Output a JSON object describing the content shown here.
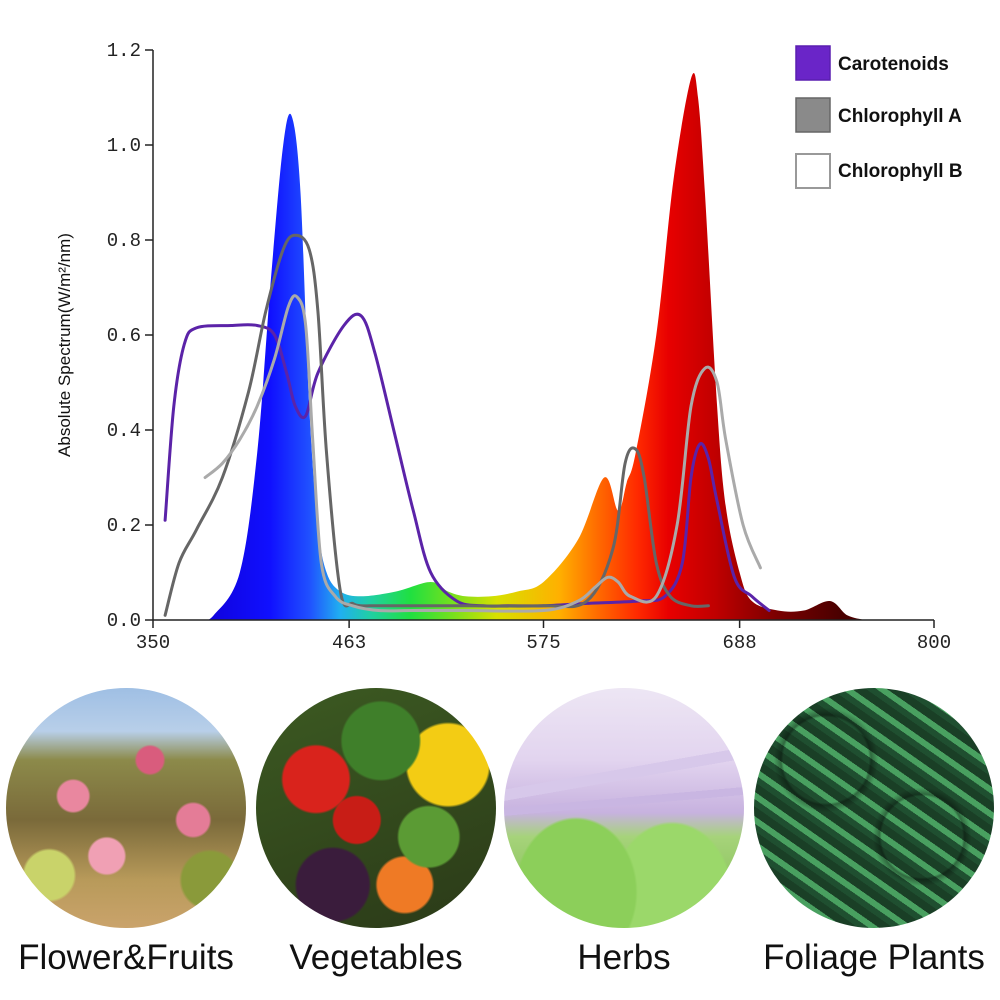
{
  "chart_data": {
    "type": "area",
    "ylabel": "Absolute Spectrum(W/m²/nm)",
    "xlabel": "",
    "xlim": [
      350,
      800
    ],
    "ylim": [
      0,
      1.2
    ],
    "x_ticks": [
      "350",
      "463",
      "575",
      "688",
      "800"
    ],
    "y_ticks": [
      "0.0",
      "0.2",
      "0.4",
      "0.6",
      "0.8",
      "1.0",
      "1.2"
    ],
    "grid": false,
    "legend_position": "top-right",
    "legend": [
      {
        "name": "Carotenoids",
        "color": "#6a25c8"
      },
      {
        "name": "Chlorophyll A",
        "color": "#888888"
      },
      {
        "name": "Chlorophyll B",
        "color": "#ffffff"
      }
    ],
    "led_spectrum": {
      "x": [
        378,
        385,
        400,
        410,
        418,
        425,
        430,
        435,
        440,
        445,
        450,
        458,
        470,
        490,
        510,
        520,
        530,
        545,
        560,
        575,
        595,
        610,
        618,
        623,
        628,
        640,
        650,
        660,
        664,
        668,
        675,
        680,
        688,
        695,
        710,
        725,
        740,
        750,
        760
      ],
      "y": [
        0.0,
        0.01,
        0.1,
        0.35,
        0.72,
        1.0,
        1.06,
        0.9,
        0.45,
        0.2,
        0.1,
        0.06,
        0.05,
        0.06,
        0.08,
        0.06,
        0.05,
        0.05,
        0.06,
        0.08,
        0.17,
        0.3,
        0.23,
        0.29,
        0.35,
        0.6,
        0.93,
        1.14,
        1.1,
        0.9,
        0.45,
        0.24,
        0.1,
        0.04,
        0.02,
        0.02,
        0.04,
        0.01,
        0.0
      ]
    },
    "series": [
      {
        "name": "Carotenoids",
        "color": "#5b23a8",
        "x": [
          357,
          362,
          368,
          375,
          395,
          410,
          420,
          427,
          432,
          438,
          445,
          460,
          470,
          478,
          490,
          500,
          510,
          525,
          540,
          555,
          575,
          600,
          630,
          645,
          655,
          660,
          665,
          670,
          675,
          685,
          695,
          705
        ],
        "y": [
          0.21,
          0.45,
          0.58,
          0.615,
          0.62,
          0.62,
          0.6,
          0.52,
          0.45,
          0.43,
          0.52,
          0.62,
          0.64,
          0.56,
          0.38,
          0.23,
          0.1,
          0.04,
          0.03,
          0.03,
          0.03,
          0.035,
          0.04,
          0.05,
          0.12,
          0.3,
          0.37,
          0.34,
          0.25,
          0.09,
          0.05,
          0.02
        ]
      },
      {
        "name": "Chlorophyll A",
        "color": "#666666",
        "x": [
          357,
          365,
          375,
          390,
          405,
          415,
          425,
          432,
          440,
          445,
          450,
          458,
          465,
          470,
          475,
          480,
          485,
          500,
          530,
          575,
          600,
          615,
          622,
          628,
          633,
          640,
          648,
          660,
          670
        ],
        "y": [
          0.01,
          0.12,
          0.19,
          0.3,
          0.48,
          0.65,
          0.78,
          0.81,
          0.78,
          0.65,
          0.35,
          0.06,
          0.035,
          0.03,
          0.03,
          0.03,
          0.03,
          0.03,
          0.03,
          0.03,
          0.04,
          0.15,
          0.33,
          0.36,
          0.3,
          0.12,
          0.05,
          0.03,
          0.03
        ]
      },
      {
        "name": "Chlorophyll B",
        "color": "#aaaaaa",
        "x": [
          380,
          390,
          400,
          410,
          420,
          428,
          433,
          438,
          442,
          447,
          455,
          465,
          480,
          500,
          530,
          575,
          595,
          605,
          612,
          618,
          625,
          640,
          652,
          660,
          668,
          675,
          680,
          690,
          700
        ],
        "y": [
          0.3,
          0.33,
          0.38,
          0.45,
          0.55,
          0.66,
          0.68,
          0.62,
          0.38,
          0.12,
          0.05,
          0.03,
          0.02,
          0.02,
          0.02,
          0.02,
          0.04,
          0.07,
          0.09,
          0.08,
          0.05,
          0.05,
          0.2,
          0.45,
          0.53,
          0.5,
          0.38,
          0.2,
          0.11
        ]
      }
    ]
  },
  "categories": [
    {
      "label": "Flower&Fruits"
    },
    {
      "label": "Vegetables"
    },
    {
      "label": "Herbs"
    },
    {
      "label": "Foliage Plants"
    }
  ]
}
